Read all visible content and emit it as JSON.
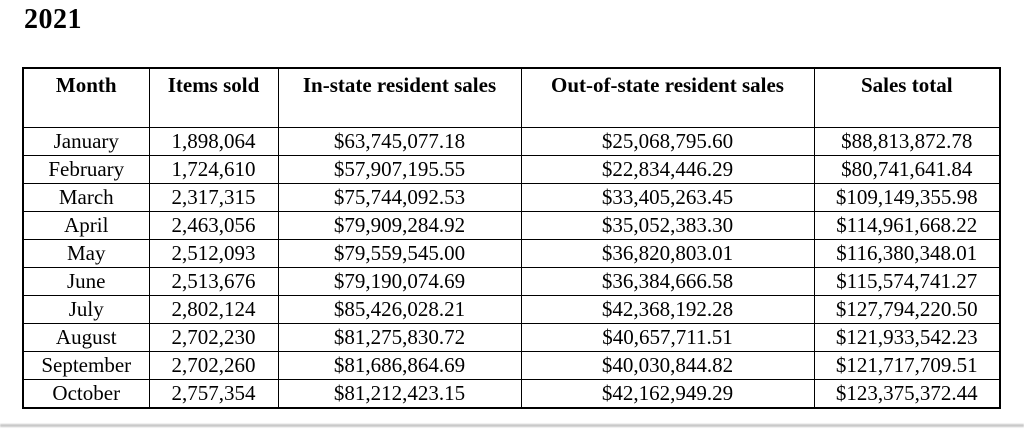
{
  "title": "2021",
  "table": {
    "columns": [
      "Month",
      "Items sold",
      "In-state resident sales",
      "Out-of-state resident sales",
      "Sales total"
    ],
    "rows": [
      [
        "January",
        "1,898,064",
        "$63,745,077.18",
        "$25,068,795.60",
        "$88,813,872.78"
      ],
      [
        "February",
        "1,724,610",
        "$57,907,195.55",
        "$22,834,446.29",
        "$80,741,641.84"
      ],
      [
        "March",
        "2,317,315",
        "$75,744,092.53",
        "$33,405,263.45",
        "$109,149,355.98"
      ],
      [
        "April",
        "2,463,056",
        "$79,909,284.92",
        "$35,052,383.30",
        "$114,961,668.22"
      ],
      [
        "May",
        "2,512,093",
        "$79,559,545.00",
        "$36,820,803.01",
        "$116,380,348.01"
      ],
      [
        "June",
        "2,513,676",
        "$79,190,074.69",
        "$36,384,666.58",
        "$115,574,741.27"
      ],
      [
        "July",
        "2,802,124",
        "$85,426,028.21",
        "$42,368,192.28",
        "$127,794,220.50"
      ],
      [
        "August",
        "2,702,230",
        "$81,275,830.72",
        "$40,657,711.51",
        "$121,933,542.23"
      ],
      [
        "September",
        "2,702,260",
        "$81,686,864.69",
        "$40,030,844.82",
        "$121,717,709.51"
      ],
      [
        "October",
        "2,757,354",
        "$81,212,423.15",
        "$42,162,949.29",
        "$123,375,372.44"
      ]
    ]
  }
}
